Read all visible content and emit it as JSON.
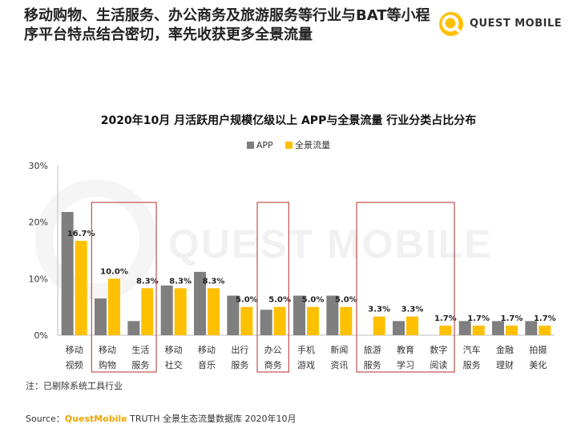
{
  "headline": "移动购物、生活服务、办公商务及旅游服务等行业与BAT等小程序平台特点结合密切，率先收获更多全景流量",
  "logo": {
    "text": "QUEST MOBILE",
    "watermark": "QUEST MOBILE"
  },
  "note": "注：已剔除系统工具行业",
  "source": {
    "prefix": "Source：",
    "brand": "QuestMobile",
    "rest": " TRUTH 全景生态流量数据库 2020年10月"
  },
  "colors": {
    "app": "#7f7f7f",
    "panorama": "#ffc000",
    "highlight_box": "#c0504d",
    "accent": "#f0a500"
  },
  "chart_data": {
    "type": "bar",
    "title": "2020年10月 月活跃用户规模亿级以上 APP与全景流量 行业分类占比分布",
    "categories": [
      [
        "移动",
        "视频"
      ],
      [
        "移动",
        "购物"
      ],
      [
        "生活",
        "服务"
      ],
      [
        "移动",
        "社交"
      ],
      [
        "移动",
        "音乐"
      ],
      [
        "出行",
        "服务"
      ],
      [
        "办公",
        "商务"
      ],
      [
        "手机",
        "游戏"
      ],
      [
        "新闻",
        "资讯"
      ],
      [
        "旅游",
        "服务"
      ],
      [
        "教育",
        "学习"
      ],
      [
        "数字",
        "阅读"
      ],
      [
        "汽车",
        "服务"
      ],
      [
        "金融",
        "理财"
      ],
      [
        "拍摄",
        "美化"
      ]
    ],
    "series": [
      {
        "name": "APP",
        "values": [
          21.8,
          6.5,
          2.5,
          8.8,
          11.2,
          7.0,
          4.5,
          7.0,
          7.0,
          0,
          2.5,
          0,
          2.5,
          2.5,
          2.5
        ]
      },
      {
        "name": "全景流量",
        "values": [
          16.7,
          10.0,
          8.3,
          8.3,
          8.3,
          5.0,
          5.0,
          5.0,
          5.0,
          3.3,
          3.3,
          1.7,
          1.7,
          1.7,
          1.7
        ],
        "labels": [
          "16.7%",
          "10.0%",
          "8.3%",
          "8.3%",
          "8.3%",
          "5.0%",
          "5.0%",
          "5.0%",
          "5.0%",
          "3.3%",
          "3.3%",
          "1.7%",
          "1.7%",
          "1.7%",
          "1.7%"
        ]
      }
    ],
    "yticks": [
      "0%",
      "10%",
      "20%",
      "30%"
    ],
    "ylim": [
      0,
      30
    ],
    "highlight_groups": [
      [
        1,
        2
      ],
      [
        6,
        6
      ],
      [
        9,
        11
      ]
    ],
    "legend": "top-center",
    "grid": false
  }
}
